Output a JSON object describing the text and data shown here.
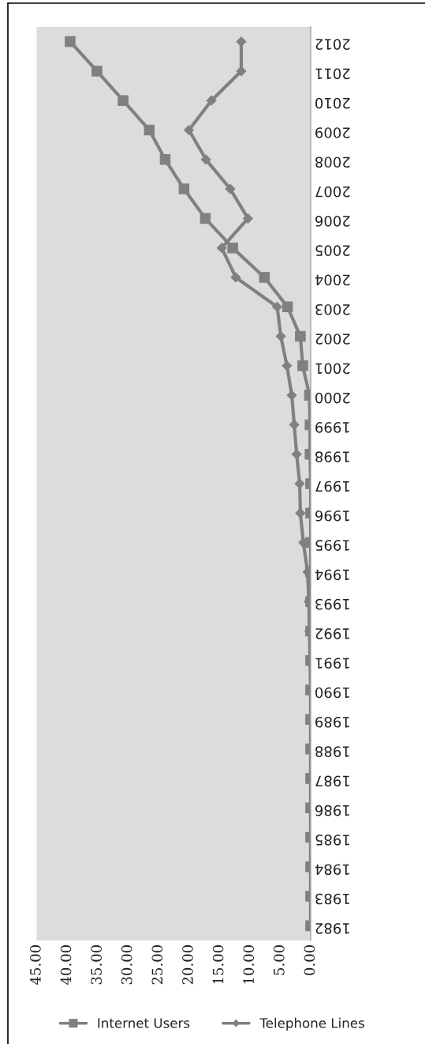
{
  "chart_data": {
    "type": "line",
    "orientation": "horizontal",
    "categories": [
      "2012",
      "2011",
      "2010",
      "2009",
      "2008",
      "2007",
      "2006",
      "2005",
      "2004",
      "2003",
      "2002",
      "2001",
      "2000",
      "1999",
      "1998",
      "1997",
      "1996",
      "1995",
      "1994",
      "1993",
      "1992",
      "1991",
      "1990",
      "1989",
      "1988",
      "1987",
      "1986",
      "1985",
      "1984",
      "1983",
      "1982"
    ],
    "series": [
      {
        "name": "Internet Users",
        "color": "#808080",
        "marker": "square",
        "values": [
          39.5,
          35.1,
          30.8,
          26.5,
          23.9,
          20.8,
          17.3,
          12.8,
          7.6,
          3.8,
          1.7,
          1.3,
          0.2,
          0.1,
          0.1,
          0,
          0,
          0,
          0,
          0,
          0,
          0,
          0,
          0,
          0,
          0,
          0,
          0,
          0,
          0,
          0
        ]
      },
      {
        "name": "Telephone Lines",
        "color": "#808080",
        "marker": "diamond",
        "values": [
          11.4,
          11.4,
          16.3,
          20.0,
          17.2,
          13.2,
          10.3,
          14.6,
          12.3,
          5.5,
          4.9,
          3.9,
          3.1,
          2.7,
          2.3,
          1.8,
          1.7,
          1.2,
          0.5,
          0.3,
          0.2,
          0.1,
          0,
          0,
          0,
          0,
          0,
          0,
          0,
          0,
          0
        ]
      }
    ],
    "xlim": [
      45,
      0
    ],
    "xticks": [
      {
        "value": 45,
        "label": "45.00"
      },
      {
        "value": 40,
        "label": "40.00"
      },
      {
        "value": 35,
        "label": "35.00"
      },
      {
        "value": 30,
        "label": "30.00"
      },
      {
        "value": 25,
        "label": "25.00"
      },
      {
        "value": 20,
        "label": "20.00"
      },
      {
        "value": 15,
        "label": "15.00"
      },
      {
        "value": 10,
        "label": "10.00"
      },
      {
        "value": 5,
        "label": "5.00"
      },
      {
        "value": 0,
        "label": "0.00"
      }
    ],
    "grid": false,
    "legend": "bottom"
  }
}
